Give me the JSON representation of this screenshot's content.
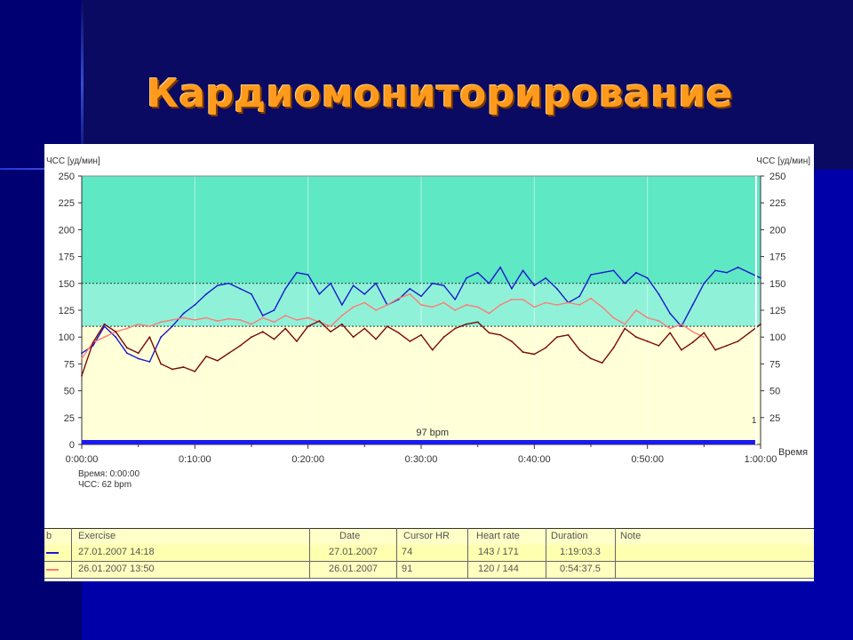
{
  "slide": {
    "title": "Кардиомониторирование"
  },
  "chart_data": {
    "type": "line",
    "ylabel_left": "ЧСС [уд/мин]",
    "ylabel_right": "ЧСС [уд/мин]",
    "xlabel": "Время",
    "ylim": [
      0,
      250
    ],
    "yticks": [
      0,
      25,
      50,
      75,
      100,
      125,
      150,
      175,
      200,
      225,
      250
    ],
    "yticks_right": [
      25,
      50,
      75,
      100,
      125,
      150,
      175,
      200,
      225,
      250
    ],
    "xlim_minutes": [
      0,
      60
    ],
    "xticks": [
      "0:00:00",
      "0:10:00",
      "0:20:00",
      "0:30:00",
      "0:40:00",
      "0:50:00",
      "1:00:00"
    ],
    "zones": [
      {
        "from": 0,
        "to": 110,
        "color": "#ffffd8"
      },
      {
        "from": 110,
        "to": 150,
        "color": "#8ff2d8"
      },
      {
        "from": 150,
        "to": 250,
        "color": "#5ee8c4"
      }
    ],
    "dashed_lines": [
      110,
      150
    ],
    "cursor_minutes": 59.6,
    "cursor_label": "1",
    "bar_label": "97 bpm",
    "cursor_readout": {
      "time": "Время: 0:00:00",
      "hr": "ЧСС: 62 bpm"
    },
    "series": [
      {
        "color": "#1a1acc",
        "x": [
          0,
          1,
          2,
          3,
          4,
          5,
          6,
          7,
          8,
          9,
          10,
          11,
          12,
          13,
          14,
          15,
          16,
          17,
          18,
          19,
          20,
          21,
          22,
          23,
          24,
          25,
          26,
          27,
          28,
          29,
          30,
          31,
          32,
          33,
          34,
          35,
          36,
          37,
          38,
          39,
          40,
          41,
          42,
          43,
          44,
          45,
          46,
          47,
          48,
          49,
          50,
          51,
          52,
          53,
          54,
          55,
          56,
          57,
          58,
          59,
          60
        ],
        "y": [
          85,
          92,
          110,
          100,
          85,
          80,
          77,
          100,
          110,
          122,
          130,
          140,
          148,
          150,
          145,
          140,
          120,
          125,
          145,
          160,
          158,
          140,
          150,
          130,
          148,
          140,
          150,
          130,
          135,
          145,
          138,
          150,
          148,
          135,
          155,
          160,
          150,
          165,
          145,
          162,
          148,
          155,
          145,
          132,
          138,
          158,
          160,
          162,
          150,
          160,
          155,
          140,
          122,
          110,
          130,
          150,
          162,
          160,
          165,
          160,
          155
        ]
      },
      {
        "color": "#ff7a7a",
        "x": [
          0,
          1,
          2,
          3,
          4,
          5,
          6,
          7,
          8,
          9,
          10,
          11,
          12,
          13,
          14,
          15,
          16,
          17,
          18,
          19,
          20,
          21,
          22,
          23,
          24,
          25,
          26,
          27,
          28,
          29,
          30,
          31,
          32,
          33,
          34,
          35,
          36,
          37,
          38,
          39,
          40,
          41,
          42,
          43,
          44,
          45,
          46,
          47,
          48,
          49,
          50,
          51,
          52,
          53,
          54,
          55
        ],
        "y": [
          80,
          95,
          100,
          105,
          108,
          112,
          110,
          114,
          116,
          118,
          116,
          118,
          115,
          117,
          116,
          112,
          118,
          114,
          120,
          116,
          118,
          114,
          110,
          120,
          128,
          132,
          125,
          130,
          136,
          140,
          130,
          128,
          132,
          125,
          130,
          128,
          122,
          130,
          135,
          135,
          128,
          132,
          130,
          132,
          130,
          136,
          128,
          118,
          112,
          125,
          118,
          115,
          108,
          112,
          105,
          100
        ]
      },
      {
        "color": "#7a0a0a",
        "x": [
          0,
          1,
          2,
          3,
          4,
          5,
          6,
          7,
          8,
          9,
          10,
          11,
          12,
          13,
          14,
          15,
          16,
          17,
          18,
          19,
          20,
          21,
          22,
          23,
          24,
          25,
          26,
          27,
          28,
          29,
          30,
          31,
          32,
          33,
          34,
          35,
          36,
          37,
          38,
          39,
          40,
          41,
          42,
          43,
          44,
          45,
          46,
          47,
          48,
          49,
          50,
          51,
          52,
          53,
          54,
          55,
          56,
          57,
          58,
          59,
          60
        ],
        "y": [
          64,
          95,
          112,
          105,
          90,
          85,
          100,
          75,
          70,
          72,
          68,
          82,
          78,
          85,
          92,
          100,
          105,
          98,
          108,
          96,
          110,
          115,
          105,
          112,
          100,
          108,
          98,
          110,
          104,
          96,
          102,
          88,
          100,
          108,
          112,
          114,
          104,
          102,
          96,
          86,
          84,
          90,
          100,
          102,
          88,
          80,
          76,
          90,
          108,
          100,
          96,
          92,
          104,
          88,
          95,
          104,
          88,
          92,
          96,
          104,
          112
        ]
      }
    ]
  },
  "table": {
    "headers": [
      "b",
      "Exercise",
      "Date",
      "Cursor HR",
      "Heart rate",
      "Duration",
      "Note"
    ],
    "rows": [
      {
        "color": "#1a1acc",
        "exercise": "27.01.2007 14:18",
        "date": "27.01.2007",
        "cursor_hr": "74",
        "heart_rate": "143 / 171",
        "duration": "1:19:03.3",
        "note": ""
      },
      {
        "color": "#ff7a7a",
        "exercise": "26.01.2007 13:50",
        "date": "26.01.2007",
        "cursor_hr": "91",
        "heart_rate": "120 / 144",
        "duration": "0:54:37.5",
        "note": ""
      }
    ]
  }
}
